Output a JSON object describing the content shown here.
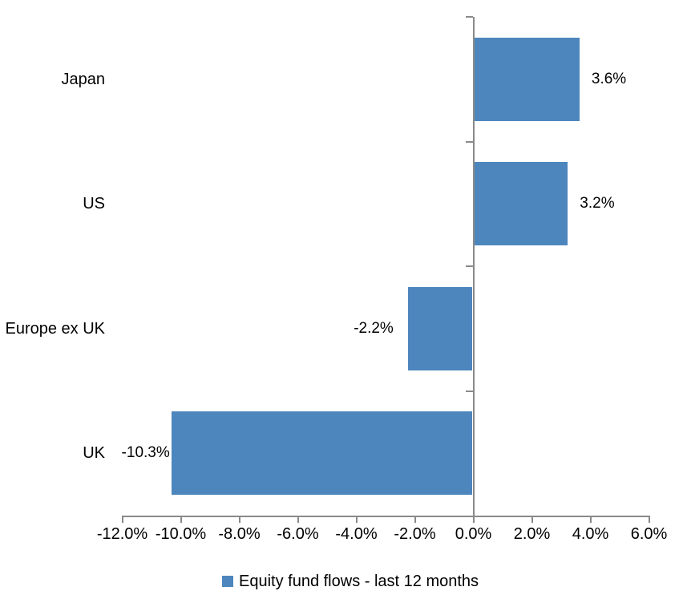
{
  "colors": {
    "bar": "#4d86bd",
    "axis": "#8a8a8a",
    "text": "#000000",
    "background": "#ffffff"
  },
  "legend": {
    "label": "Equity fund flows - last 12 months"
  },
  "chart_data": {
    "type": "bar",
    "orientation": "horizontal",
    "categories": [
      "Japan",
      "US",
      "Europe ex UK",
      "UK"
    ],
    "series": [
      {
        "name": "Equity fund flows - last 12 months",
        "values": [
          3.6,
          3.2,
          -2.2,
          -10.3
        ]
      }
    ],
    "data_labels": [
      "3.6%",
      "3.2%",
      "-2.2%",
      "-10.3%"
    ],
    "x_axis": {
      "min": -12,
      "max": 6,
      "step": 2,
      "tick_labels": [
        "-12.0%",
        "-10.0%",
        "-8.0%",
        "-6.0%",
        "-4.0%",
        "-2.0%",
        "0.0%",
        "2.0%",
        "4.0%",
        "6.0%"
      ]
    },
    "xlim": [
      -12,
      6
    ],
    "grid": false,
    "legend_position": "bottom"
  }
}
